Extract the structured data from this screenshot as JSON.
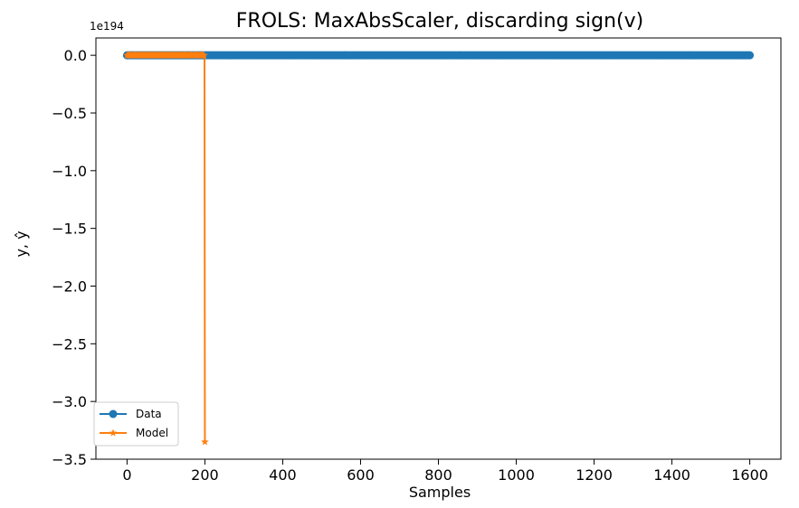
{
  "chart_data": {
    "type": "line",
    "title": "FROLS: MaxAbsScaler, discarding sign(v)",
    "xlabel": "Samples",
    "ylabel": "y, ŷ",
    "y_offset_label": "1e194",
    "xlim": [
      -80,
      1680
    ],
    "ylim": [
      -3.5,
      0.15
    ],
    "x_ticks": [
      0,
      200,
      400,
      600,
      800,
      1000,
      1200,
      1400,
      1600
    ],
    "x_tick_labels": [
      "0",
      "200",
      "400",
      "600",
      "800",
      "1000",
      "1200",
      "1400",
      "1600"
    ],
    "y_ticks": [
      0.0,
      -0.5,
      -1.0,
      -1.5,
      -2.0,
      -2.5,
      -3.0,
      -3.5
    ],
    "y_tick_labels": [
      "0.0",
      "−0.5",
      "−1.0",
      "−1.5",
      "−2.0",
      "−2.5",
      "−3.0",
      "−3.5"
    ],
    "grid": false,
    "legend_position": "lower-left",
    "series": [
      {
        "name": "Data",
        "color": "#1f77b4",
        "marker": "circle",
        "x_range": [
          0,
          1600
        ],
        "value": 0.0
      },
      {
        "name": "Model",
        "color": "#ff7f0e",
        "marker": "star",
        "x_range": [
          0,
          199
        ],
        "value": 0.0,
        "final_point": {
          "x": 200,
          "y": -3.35
        }
      }
    ]
  }
}
